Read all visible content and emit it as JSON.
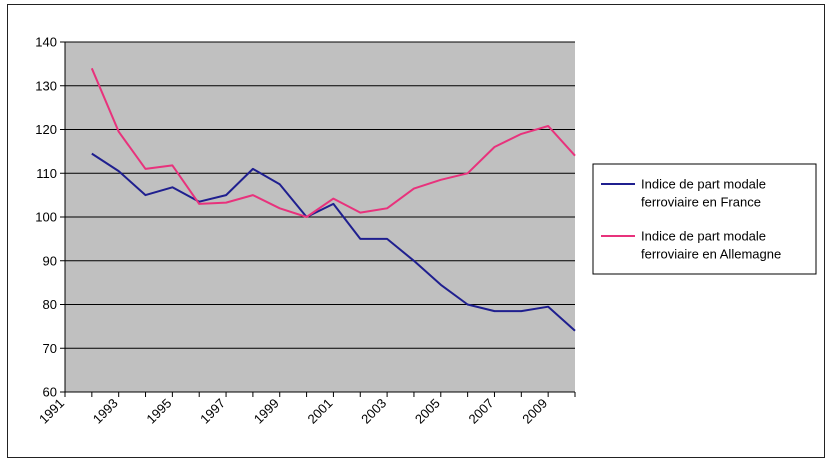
{
  "chart_data": {
    "type": "line",
    "x": [
      1992,
      1993,
      1994,
      1995,
      1996,
      1997,
      1998,
      1999,
      2000,
      2001,
      2002,
      2003,
      2004,
      2005,
      2006,
      2007,
      2008,
      2009,
      2010
    ],
    "x_tick_labels": [
      "1991",
      "1993",
      "1995",
      "1997",
      "1999",
      "2001",
      "2003",
      "2005",
      "2007",
      "2009"
    ],
    "y_tick_labels": [
      "60",
      "70",
      "80",
      "90",
      "100",
      "110",
      "120",
      "130",
      "140"
    ],
    "ylim": [
      60,
      140
    ],
    "grid": "horizontal",
    "legend_position": "right",
    "series": [
      {
        "name": "Indice de part modale ferroviaire en France",
        "name_lines": [
          "Indice de part modale",
          "ferroviaire en France"
        ],
        "color": "#1f1f8f",
        "values": [
          114.5,
          110.5,
          105,
          106.8,
          103.5,
          105,
          111,
          107.5,
          100,
          103,
          95,
          95,
          90,
          84.5,
          80,
          78.5,
          78.5,
          79.5,
          74
        ]
      },
      {
        "name": "Indice de part modale ferroviaire en Allemagne",
        "name_lines": [
          "Indice de part modale",
          "ferroviaire en Allemagne"
        ],
        "color": "#e8327c",
        "values": [
          134,
          119.5,
          111,
          111.8,
          103,
          103.3,
          105,
          102,
          100,
          104.2,
          101,
          102,
          106.5,
          108.5,
          110,
          116,
          119,
          120.8,
          114
        ]
      }
    ]
  }
}
